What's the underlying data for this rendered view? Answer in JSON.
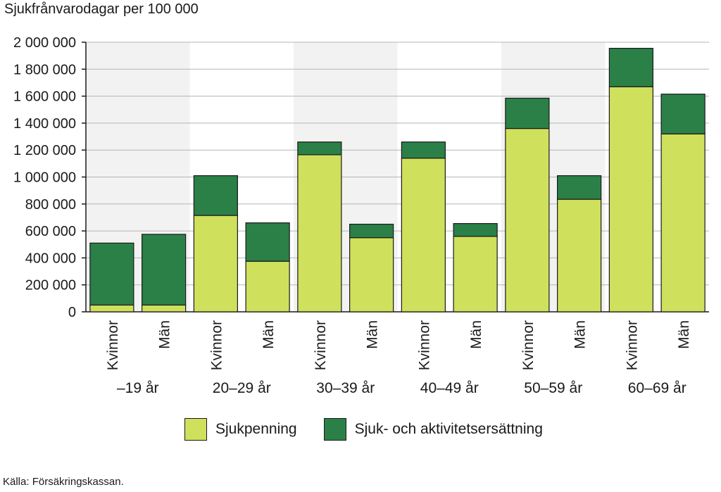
{
  "chart_data": {
    "type": "bar",
    "stacked": true,
    "ylabel": "Sjukfrånvarodagar per 100 000",
    "ylim": [
      0,
      2000000
    ],
    "yticks": [
      0,
      200000,
      400000,
      600000,
      800000,
      1000000,
      1200000,
      1400000,
      1600000,
      1800000,
      2000000
    ],
    "ytick_labels": [
      "0",
      "200 000",
      "400 000",
      "600 000",
      "800 000",
      "1 000 000",
      "1 200 000",
      "1 400 000",
      "1 600 000",
      "1 800 000",
      "2 000 000"
    ],
    "groups": [
      "–19 år",
      "20–29 år",
      "30–39 år",
      "40–49 år",
      "50–59 år",
      "60–69 år"
    ],
    "categories": [
      "Kvinnor",
      "Män",
      "Kvinnor",
      "Män",
      "Kvinnor",
      "Män",
      "Kvinnor",
      "Män",
      "Kvinnor",
      "Män",
      "Kvinnor",
      "Män"
    ],
    "series": [
      {
        "name": "Sjukpenning",
        "color": "#cfe05c",
        "values": [
          50000,
          50000,
          715000,
          375000,
          1165000,
          550000,
          1140000,
          560000,
          1360000,
          835000,
          1670000,
          1320000
        ]
      },
      {
        "name": "Sjuk- och aktivitetsersättning",
        "color": "#2b8048",
        "values": [
          460000,
          525000,
          295000,
          285000,
          95000,
          100000,
          120000,
          95000,
          225000,
          175000,
          285000,
          295000
        ]
      }
    ],
    "grid": true,
    "legend_position": "bottom"
  },
  "source_note": "Källa: Försäkringskassan."
}
